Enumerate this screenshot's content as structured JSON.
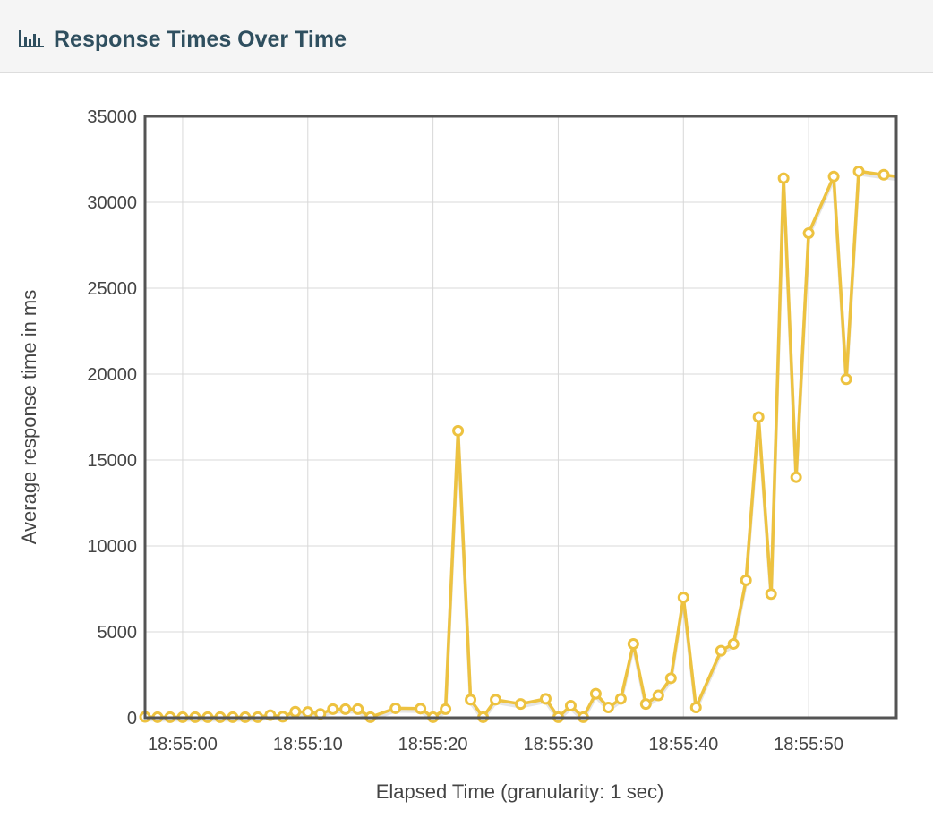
{
  "panel": {
    "title": "Response Times Over Time",
    "icon": "bar-chart-icon"
  },
  "colors": {
    "series": "#edc240",
    "header_bg": "#f5f5f5",
    "title": "#2f4f5f",
    "grid": "#d8d8d8",
    "frame": "#545454"
  },
  "chart_data": {
    "type": "line",
    "title": "",
    "xlabel": "Elapsed Time (granularity: 1 sec)",
    "ylabel": "Average response time in ms",
    "ylim": [
      0,
      35000
    ],
    "yticks": [
      0,
      5000,
      10000,
      15000,
      20000,
      25000,
      30000,
      35000
    ],
    "xlim": [
      "18:54:57",
      "18:55:57"
    ],
    "xticks": [
      "18:55:00",
      "18:55:10",
      "18:55:20",
      "18:55:30",
      "18:55:40",
      "18:55:50"
    ],
    "grid": true,
    "legend": "none",
    "series": [
      {
        "points": [
          [
            "18:54:57",
            50
          ],
          [
            "18:54:58",
            30
          ],
          [
            "18:54:59",
            30
          ],
          [
            "18:55:00",
            30
          ],
          [
            "18:55:01",
            30
          ],
          [
            "18:55:02",
            30
          ],
          [
            "18:55:03",
            30
          ],
          [
            "18:55:04",
            30
          ],
          [
            "18:55:05",
            30
          ],
          [
            "18:55:06",
            30
          ],
          [
            "18:55:07",
            150
          ],
          [
            "18:55:08",
            60
          ],
          [
            "18:55:09",
            350
          ],
          [
            "18:55:10",
            330
          ],
          [
            "18:55:11",
            220
          ],
          [
            "18:55:12",
            500
          ],
          [
            "18:55:13",
            500
          ],
          [
            "18:55:14",
            500
          ],
          [
            "18:55:15",
            30
          ],
          [
            "18:55:17",
            550
          ],
          [
            "18:55:19",
            530
          ],
          [
            "18:55:20",
            30
          ],
          [
            "18:55:21",
            500
          ],
          [
            "18:55:22",
            16700
          ],
          [
            "18:55:23",
            1050
          ],
          [
            "18:55:24",
            30
          ],
          [
            "18:55:25",
            1050
          ],
          [
            "18:55:27",
            800
          ],
          [
            "18:55:29",
            1100
          ],
          [
            "18:55:30",
            30
          ],
          [
            "18:55:31",
            700
          ],
          [
            "18:55:32",
            30
          ],
          [
            "18:55:33",
            1400
          ],
          [
            "18:55:34",
            600
          ],
          [
            "18:55:35",
            1100
          ],
          [
            "18:55:36",
            4300
          ],
          [
            "18:55:37",
            800
          ],
          [
            "18:55:38",
            1300
          ],
          [
            "18:55:39",
            2300
          ],
          [
            "18:55:40",
            7000
          ],
          [
            "18:55:41",
            600
          ],
          [
            "18:55:43",
            3900
          ],
          [
            "18:55:44",
            4300
          ],
          [
            "18:55:45",
            8000
          ],
          [
            "18:55:46",
            17500
          ],
          [
            "18:55:47",
            7200
          ],
          [
            "18:55:48",
            31400
          ],
          [
            "18:55:49",
            14000
          ],
          [
            "18:55:50",
            28200
          ],
          [
            "18:55:52",
            31500
          ],
          [
            "18:55:53",
            19700
          ],
          [
            "18:55:54",
            31800
          ],
          [
            "18:55:56",
            31600
          ],
          [
            "18:55:58",
            31400
          ]
        ]
      }
    ]
  }
}
